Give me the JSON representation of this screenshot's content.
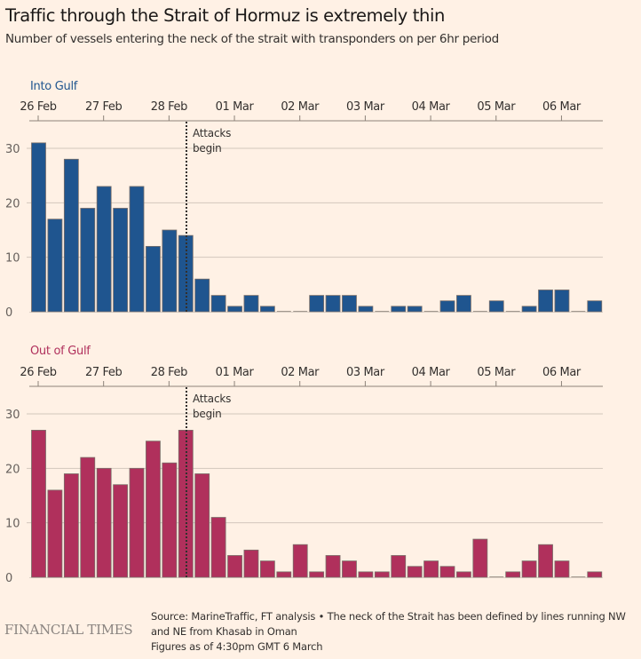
{
  "header": {
    "title": "Traffic through the Strait of Hormuz is extremely thin",
    "subtitle": "Number of vessels entering the neck of the strait with transponders on per 6hr period"
  },
  "footer": {
    "source_line1": "Source: MarineTraffic, FT analysis • The neck of the Strait has been defined by lines running NW",
    "source_line2": "and NE from Khasab in Oman",
    "figures_note": "Figures as of 4:30pm GMT 6 March",
    "logo": "FINANCIAL TIMES"
  },
  "colors": {
    "background": "#FFF1E5",
    "into_gulf": "#1F558F",
    "out_of_gulf": "#B0305C",
    "grid": "#D2C7BC",
    "axis": "#8C8279"
  },
  "chart_data": [
    {
      "type": "bar",
      "title": "Into Gulf",
      "xlabel": "",
      "ylabel": "",
      "ylim": [
        0,
        30
      ],
      "yticks": [
        0,
        10,
        20,
        30
      ],
      "grid": true,
      "x_tick_labels": [
        "26 Feb",
        "27 Feb",
        "28 Feb",
        "01 Mar",
        "02 Mar",
        "03 Mar",
        "04 Mar",
        "05 Mar",
        "06 Mar"
      ],
      "period": "6hr",
      "annotation": {
        "text_line1": "Attacks",
        "text_line2": "begin",
        "at_bar_index": 9.5
      },
      "values": [
        31,
        17,
        28,
        19,
        23,
        19,
        23,
        12,
        15,
        14,
        6,
        3,
        1,
        3,
        1,
        0,
        0,
        3,
        3,
        3,
        1,
        0,
        1,
        1,
        0,
        2,
        3,
        0,
        2,
        0,
        1,
        4,
        4,
        0,
        2
      ]
    },
    {
      "type": "bar",
      "title": "Out of Gulf",
      "xlabel": "",
      "ylabel": "",
      "ylim": [
        0,
        30
      ],
      "yticks": [
        0,
        10,
        20,
        30
      ],
      "grid": true,
      "x_tick_labels": [
        "26 Feb",
        "27 Feb",
        "28 Feb",
        "01 Mar",
        "02 Mar",
        "03 Mar",
        "04 Mar",
        "05 Mar",
        "06 Mar"
      ],
      "period": "6hr",
      "annotation": {
        "text_line1": "Attacks",
        "text_line2": "begin",
        "at_bar_index": 9.5
      },
      "values": [
        27,
        16,
        19,
        22,
        20,
        17,
        20,
        25,
        21,
        27,
        19,
        11,
        4,
        5,
        3,
        1,
        6,
        1,
        4,
        3,
        1,
        1,
        4,
        2,
        3,
        2,
        1,
        7,
        0,
        1,
        3,
        6,
        3,
        0,
        1
      ]
    }
  ]
}
